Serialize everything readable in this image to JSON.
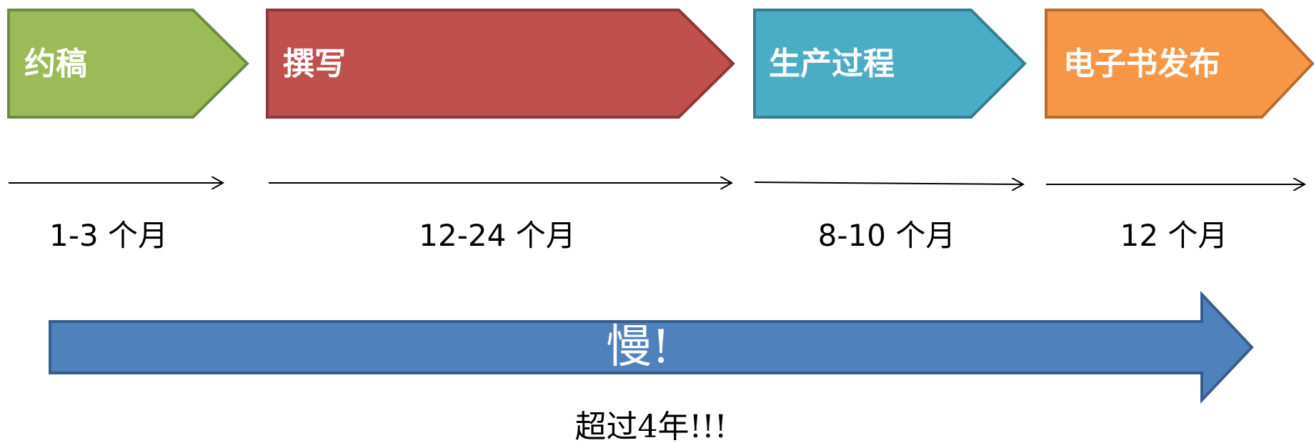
{
  "stages": [
    {
      "label": "约稿",
      "duration": "1-3 个月",
      "fill": "#9BBB59",
      "stroke": "#71893F"
    },
    {
      "label": "撰写",
      "duration": "12-24 个月",
      "fill": "#C0504D",
      "stroke": "#8C3836"
    },
    {
      "label": "生产过程",
      "duration": "8-10 个月",
      "fill": "#4BACC6",
      "stroke": "#357D91"
    },
    {
      "label": "电子书发布",
      "duration": "12 个月",
      "fill": "#F79646",
      "stroke": "#B66D31"
    }
  ],
  "summary": {
    "arrow_label": "慢!",
    "total_label": "超过4年!!!",
    "fill": "#4F81BD",
    "stroke": "#385D8A"
  }
}
